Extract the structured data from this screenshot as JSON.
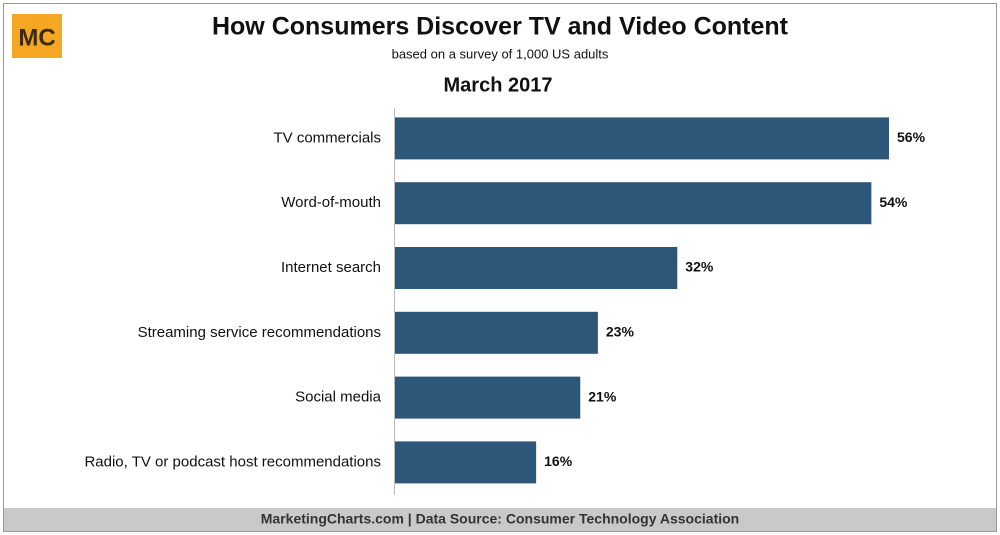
{
  "logo": "MC",
  "footer": "MarketingCharts.com | Data Source: Consumer Technology Association",
  "chart_data": {
    "type": "bar",
    "orientation": "horizontal",
    "title": "How Consumers Discover TV and Video Content",
    "subtitle": "based on a survey of 1,000 US adults",
    "period": "March 2017",
    "categories": [
      "TV commercials",
      "Word-of-mouth",
      "Internet search",
      "Streaming service recommendations",
      "Social media",
      "Radio, TV or podcast host recommendations"
    ],
    "values": [
      56,
      54,
      32,
      23,
      21,
      16
    ],
    "value_labels": [
      "56%",
      "54%",
      "32%",
      "23%",
      "21%",
      "16%"
    ],
    "color": "#2d5779"
  }
}
